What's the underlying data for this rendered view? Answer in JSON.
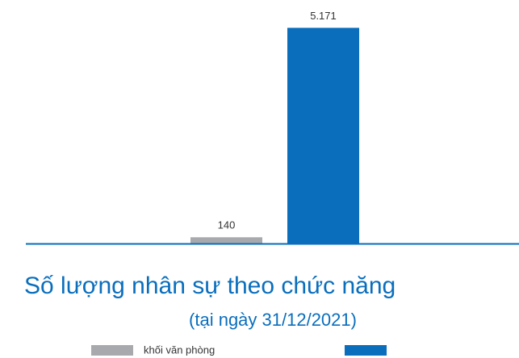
{
  "chart_data": {
    "type": "bar",
    "title": "Số lượng nhân sự theo chức năng",
    "subtitle": "(tại ngày 31/12/2021)",
    "series": [
      {
        "name": "khối văn phòng",
        "color": "#a7a9ac",
        "values": [
          140
        ],
        "value_labels": [
          "140"
        ]
      },
      {
        "name": null,
        "color": "#0a6ebd",
        "values": [
          5171
        ],
        "value_labels": [
          "5.171"
        ]
      }
    ]
  }
}
